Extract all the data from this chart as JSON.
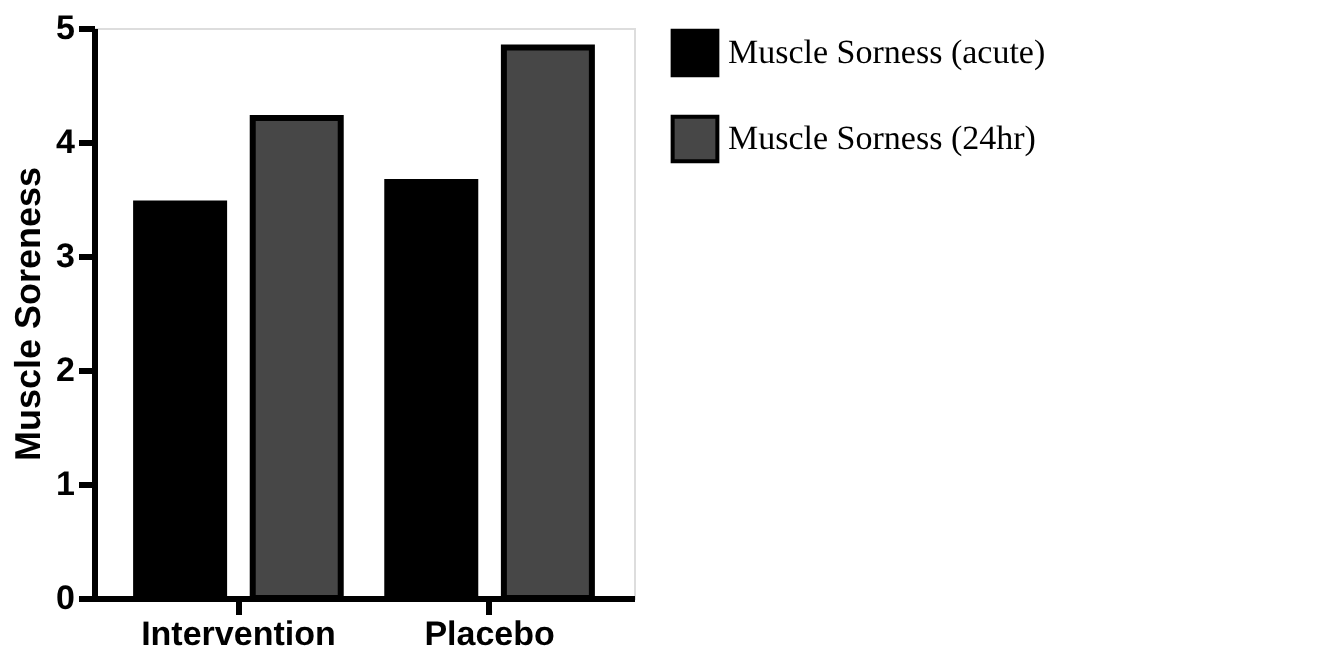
{
  "chart_data": {
    "type": "bar",
    "ylabel": "Muscle Soreness",
    "categories": [
      "Intervention",
      "Placebo"
    ],
    "series": [
      {
        "name": "Muscle Sorness (acute)",
        "color": "#000000",
        "values": [
          3.46,
          3.65
        ]
      },
      {
        "name": "Muscle Sorness (24hr)",
        "color": "#474747",
        "values": [
          4.21,
          4.83
        ]
      }
    ],
    "ylim": [
      0,
      5
    ],
    "yticks": [
      0,
      1,
      2,
      3,
      4,
      5
    ],
    "grid": false,
    "legend": "top right"
  }
}
